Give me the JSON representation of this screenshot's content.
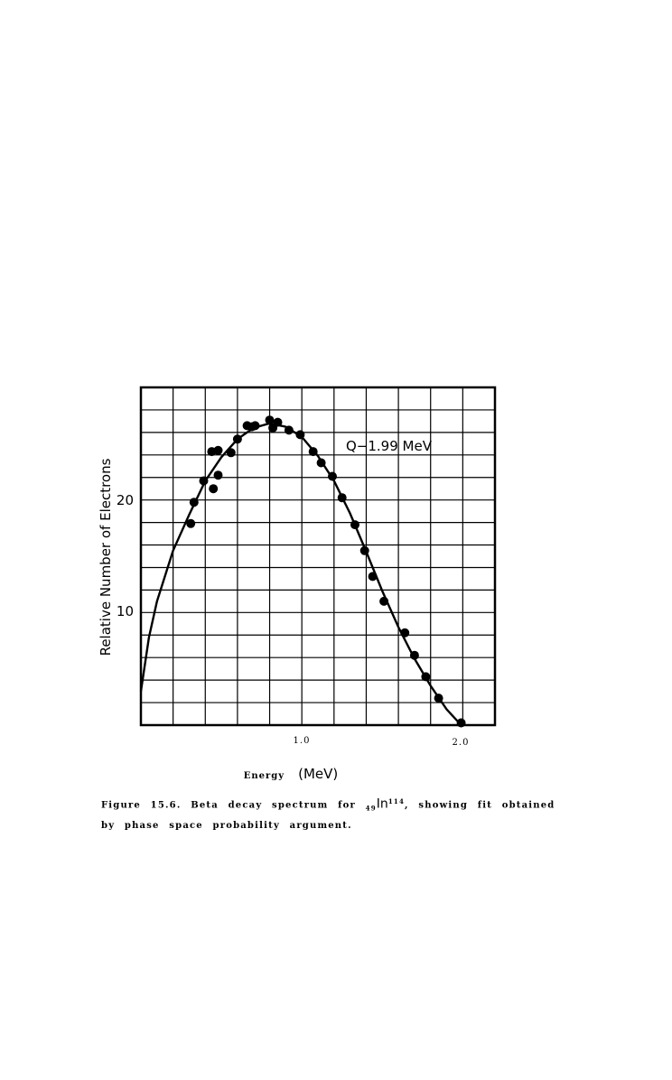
{
  "chart_data": {
    "type": "scatter",
    "xlabel_main": "Energy",
    "xlabel_unit": "(MeV)",
    "ylabel": "Relative Number of Electrons",
    "x_ticks": [
      "1.0",
      "2.0"
    ],
    "y_ticks": [
      "10",
      "20"
    ],
    "xlim": [
      0,
      2.2
    ],
    "ylim": [
      0,
      30
    ],
    "grid": true,
    "annotation": "Q−1.99 MeV",
    "series": [
      {
        "points": [
          [
            0.31,
            17.9
          ],
          [
            0.33,
            19.8
          ],
          [
            0.39,
            21.7
          ],
          [
            0.44,
            24.3
          ],
          [
            0.45,
            21.0
          ],
          [
            0.48,
            24.4
          ],
          [
            0.48,
            22.2
          ],
          [
            0.56,
            24.2
          ],
          [
            0.6,
            25.4
          ],
          [
            0.66,
            26.6
          ],
          [
            0.69,
            26.5
          ],
          [
            0.71,
            26.6
          ],
          [
            0.8,
            27.1
          ],
          [
            0.82,
            26.4
          ],
          [
            0.85,
            26.9
          ],
          [
            0.92,
            26.2
          ],
          [
            0.99,
            25.8
          ],
          [
            1.07,
            24.3
          ],
          [
            1.12,
            23.3
          ],
          [
            1.19,
            22.1
          ],
          [
            1.25,
            20.2
          ],
          [
            1.33,
            17.8
          ],
          [
            1.39,
            15.5
          ],
          [
            1.44,
            13.2
          ],
          [
            1.51,
            11.0
          ],
          [
            1.64,
            8.2
          ],
          [
            1.7,
            6.2
          ],
          [
            1.77,
            4.3
          ],
          [
            1.85,
            2.4
          ],
          [
            1.99,
            0.2
          ]
        ]
      },
      {
        "type": "line",
        "points": [
          [
            0.0,
            3.0
          ],
          [
            0.05,
            7.8
          ],
          [
            0.1,
            11.0
          ],
          [
            0.2,
            15.5
          ],
          [
            0.3,
            18.7
          ],
          [
            0.4,
            21.7
          ],
          [
            0.5,
            23.8
          ],
          [
            0.6,
            25.4
          ],
          [
            0.7,
            26.4
          ],
          [
            0.8,
            26.8
          ],
          [
            0.9,
            26.5
          ],
          [
            1.0,
            25.6
          ],
          [
            1.1,
            23.9
          ],
          [
            1.2,
            21.7
          ],
          [
            1.3,
            18.8
          ],
          [
            1.4,
            15.4
          ],
          [
            1.5,
            11.9
          ],
          [
            1.6,
            8.7
          ],
          [
            1.7,
            5.9
          ],
          [
            1.8,
            3.5
          ],
          [
            1.9,
            1.4
          ],
          [
            1.99,
            0.0
          ]
        ]
      }
    ]
  },
  "caption": {
    "label": "Figure 15.6.",
    "text_before": "Beta decay spectrum for",
    "nuclide_sub": "49",
    "nuclide_el": "In",
    "nuclide_sup": "114",
    "text_after": ", showing fit obtained by phase space probability argument."
  }
}
